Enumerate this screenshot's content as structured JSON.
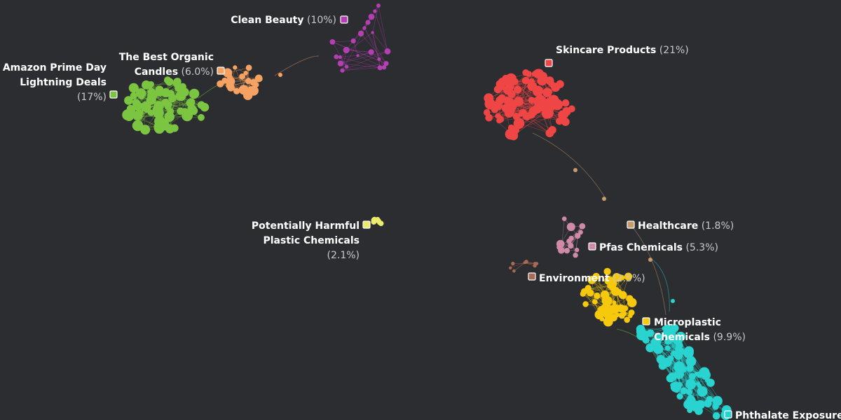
{
  "clusters": [
    {
      "id": "clean-beauty",
      "label": "Clean Beauty",
      "pct": "(10%)",
      "color": "#b43fb0"
    },
    {
      "id": "organic-candles",
      "label_lines": [
        "The Best Organic",
        "Candles"
      ],
      "pct": "(6.0%)",
      "color": "#f5a262"
    },
    {
      "id": "prime-day",
      "label_lines": [
        "Amazon Prime Day",
        "Lightning Deals"
      ],
      "pct": "(17%)",
      "color": "#7cc540"
    },
    {
      "id": "skincare",
      "label": "Skincare Products",
      "pct": "(21%)",
      "color": "#ef4545"
    },
    {
      "id": "plastic-chemicals",
      "label_lines": [
        "Potentially Harmful",
        "Plastic Chemicals"
      ],
      "pct": "(2.1%)",
      "color": "#ecec6a"
    },
    {
      "id": "healthcare",
      "label": "Healthcare",
      "pct": "(1.8%)",
      "color": "#c69c6d"
    },
    {
      "id": "pfas",
      "label": "Pfas Chemicals",
      "pct": "(5.3%)",
      "color": "#cf8aa8"
    },
    {
      "id": "environment",
      "label": "Environment",
      "pct": "(2.5%)",
      "color": "#a86a55"
    },
    {
      "id": "microplastic",
      "label_lines": [
        "Microplastic",
        "Chemicals"
      ],
      "pct": "(9.9%)",
      "color": "#f7c90c"
    },
    {
      "id": "phthalate",
      "label": "Phthalate Exposure",
      "pct": "",
      "color": "#29d3cf"
    }
  ]
}
